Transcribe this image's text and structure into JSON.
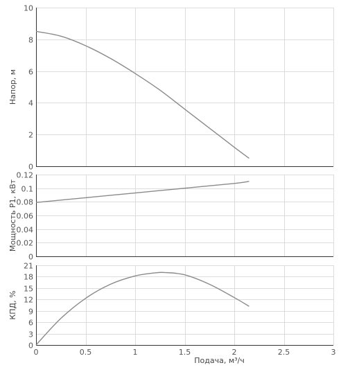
{
  "chart_data": [
    {
      "type": "line",
      "ylabel": "Напор, м",
      "ylim": [
        0,
        10
      ],
      "yticks": [
        0,
        2,
        4,
        6,
        8,
        10
      ],
      "xlim": [
        0,
        3
      ],
      "grid": true,
      "series": [
        {
          "x": [
            0,
            0.25,
            0.5,
            0.75,
            1.0,
            1.25,
            1.5,
            1.75,
            2.0,
            2.15
          ],
          "y": [
            8.5,
            8.2,
            7.6,
            6.8,
            5.85,
            4.8,
            3.6,
            2.4,
            1.2,
            0.5
          ]
        }
      ]
    },
    {
      "type": "line",
      "ylabel": "Мощность P1, кВт",
      "ylim": [
        0,
        0.12
      ],
      "yticks": [
        "0",
        "0.02",
        "0.04",
        "0.06",
        "0.08",
        "0.1",
        "0.12"
      ],
      "xlim": [
        0,
        3
      ],
      "grid": true,
      "series": [
        {
          "x": [
            0,
            0.5,
            1.0,
            1.5,
            2.0,
            2.15
          ],
          "y": [
            0.079,
            0.086,
            0.093,
            0.1,
            0.107,
            0.11
          ]
        }
      ]
    },
    {
      "type": "line",
      "ylabel": "КПД, %",
      "xlabel": "Подача, м³/ч",
      "ylim": [
        0,
        21
      ],
      "yticks": [
        0,
        3,
        6,
        9,
        12,
        15,
        18,
        21
      ],
      "xlim": [
        0,
        3
      ],
      "xticks": [
        "0",
        "0.5",
        "1",
        "1.5",
        "2",
        "2.5",
        "3"
      ],
      "grid": true,
      "series": [
        {
          "x": [
            0,
            0.25,
            0.5,
            0.75,
            1.0,
            1.2,
            1.3,
            1.5,
            1.75,
            2.0,
            2.15
          ],
          "y": [
            0,
            7,
            12.3,
            16,
            18.2,
            19.0,
            19.1,
            18.5,
            16.0,
            12.5,
            10.2
          ]
        }
      ]
    }
  ]
}
